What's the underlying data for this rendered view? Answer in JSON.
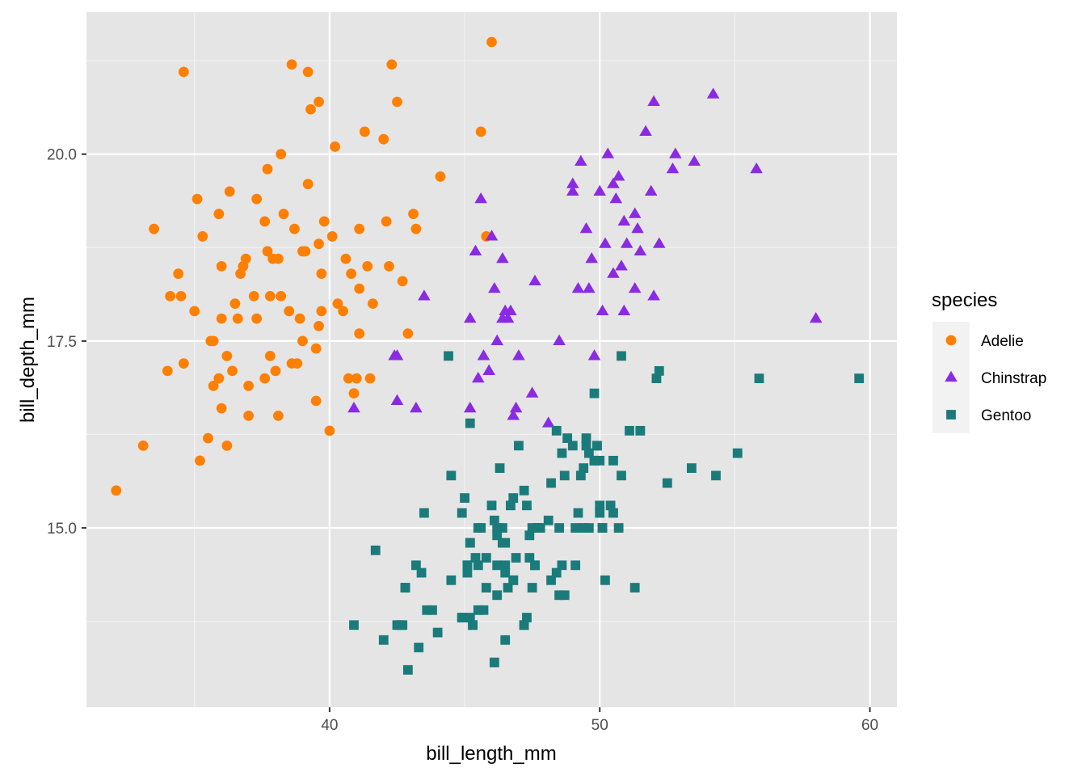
{
  "chart_data": {
    "type": "scatter",
    "xlabel": "bill_length_mm",
    "ylabel": "bill_depth_mm",
    "xlim": [
      31.0,
      61.0
    ],
    "ylim": [
      12.6,
      21.9
    ],
    "x_ticks": [
      40,
      50,
      60
    ],
    "x_tick_labels": [
      "40",
      "50",
      "60"
    ],
    "y_ticks": [
      15.0,
      17.5,
      20.0
    ],
    "y_tick_labels": [
      "15.0",
      "17.5",
      "20.0"
    ],
    "grid": true,
    "background": "#e5e5e5",
    "legend": {
      "title": "species",
      "position": "right"
    },
    "series": [
      {
        "name": "Adelie",
        "marker": "circle",
        "color": "#ff7f00",
        "points": [
          [
            32.1,
            15.5
          ],
          [
            33.1,
            16.1
          ],
          [
            33.5,
            19.0
          ],
          [
            34.0,
            17.1
          ],
          [
            34.1,
            18.1
          ],
          [
            34.4,
            18.4
          ],
          [
            34.5,
            18.1
          ],
          [
            34.6,
            17.2
          ],
          [
            34.6,
            21.1
          ],
          [
            35.0,
            17.9
          ],
          [
            35.1,
            19.4
          ],
          [
            35.2,
            15.9
          ],
          [
            35.3,
            18.9
          ],
          [
            35.5,
            16.2
          ],
          [
            35.6,
            17.5
          ],
          [
            35.7,
            17.5
          ],
          [
            35.7,
            16.9
          ],
          [
            35.9,
            19.2
          ],
          [
            35.9,
            17.0
          ],
          [
            36.0,
            16.6
          ],
          [
            36.0,
            17.8
          ],
          [
            36.2,
            16.1
          ],
          [
            36.2,
            17.3
          ],
          [
            36.3,
            19.5
          ],
          [
            36.4,
            17.1
          ],
          [
            36.6,
            17.8
          ],
          [
            36.5,
            18.0
          ],
          [
            36.7,
            18.4
          ],
          [
            36.8,
            18.5
          ],
          [
            36.9,
            18.6
          ],
          [
            37.0,
            16.5
          ],
          [
            37.0,
            16.9
          ],
          [
            37.2,
            18.1
          ],
          [
            37.3,
            19.4
          ],
          [
            37.3,
            17.8
          ],
          [
            37.6,
            19.1
          ],
          [
            37.6,
            17.0
          ],
          [
            37.7,
            18.7
          ],
          [
            37.8,
            17.3
          ],
          [
            37.8,
            18.1
          ],
          [
            37.9,
            18.6
          ],
          [
            38.1,
            18.6
          ],
          [
            38.1,
            16.5
          ],
          [
            38.2,
            18.1
          ],
          [
            38.2,
            20.0
          ],
          [
            38.3,
            19.2
          ],
          [
            38.5,
            17.9
          ],
          [
            38.6,
            21.2
          ],
          [
            38.6,
            17.2
          ],
          [
            38.7,
            19.0
          ],
          [
            38.8,
            17.2
          ],
          [
            38.9,
            17.8
          ],
          [
            39.0,
            17.5
          ],
          [
            39.1,
            18.7
          ],
          [
            39.2,
            19.6
          ],
          [
            39.2,
            21.1
          ],
          [
            39.3,
            20.6
          ],
          [
            39.5,
            17.4
          ],
          [
            39.5,
            16.7
          ],
          [
            39.6,
            17.7
          ],
          [
            39.6,
            20.7
          ],
          [
            39.7,
            18.4
          ],
          [
            39.8,
            19.1
          ],
          [
            39.6,
            18.8
          ],
          [
            39.7,
            17.9
          ],
          [
            40.0,
            16.3
          ],
          [
            40.1,
            18.9
          ],
          [
            40.2,
            20.1
          ],
          [
            40.3,
            18.0
          ],
          [
            40.5,
            17.9
          ],
          [
            40.6,
            18.6
          ],
          [
            40.7,
            17.0
          ],
          [
            40.8,
            18.4
          ],
          [
            40.9,
            16.8
          ],
          [
            41.0,
            17.0
          ],
          [
            41.1,
            18.2
          ],
          [
            41.1,
            19.0
          ],
          [
            41.3,
            20.3
          ],
          [
            41.4,
            18.5
          ],
          [
            41.5,
            17.0
          ],
          [
            41.6,
            18.0
          ],
          [
            42.0,
            20.2
          ],
          [
            42.1,
            19.1
          ],
          [
            42.2,
            18.5
          ],
          [
            42.3,
            21.2
          ],
          [
            42.5,
            20.7
          ],
          [
            42.7,
            18.3
          ],
          [
            42.9,
            17.6
          ],
          [
            43.1,
            19.2
          ],
          [
            43.2,
            19.0
          ],
          [
            44.1,
            19.7
          ],
          [
            45.6,
            20.3
          ],
          [
            45.8,
            18.9
          ],
          [
            46.0,
            21.5
          ],
          [
            41.1,
            17.6
          ],
          [
            38.0,
            17.1
          ],
          [
            37.7,
            19.8
          ],
          [
            36.0,
            18.5
          ],
          [
            39.0,
            18.7
          ]
        ]
      },
      {
        "name": "Chinstrap",
        "marker": "triangle",
        "color": "#8a2be2",
        "points": [
          [
            40.9,
            16.6
          ],
          [
            42.4,
            17.3
          ],
          [
            42.5,
            16.7
          ],
          [
            43.2,
            16.6
          ],
          [
            43.5,
            18.1
          ],
          [
            45.2,
            16.6
          ],
          [
            45.4,
            18.7
          ],
          [
            45.5,
            17.0
          ],
          [
            45.6,
            19.4
          ],
          [
            45.7,
            17.3
          ],
          [
            45.9,
            17.1
          ],
          [
            46.0,
            18.9
          ],
          [
            46.1,
            18.2
          ],
          [
            46.4,
            17.8
          ],
          [
            46.2,
            17.5
          ],
          [
            46.5,
            17.9
          ],
          [
            46.6,
            17.8
          ],
          [
            46.7,
            17.9
          ],
          [
            46.8,
            16.5
          ],
          [
            46.9,
            16.6
          ],
          [
            47.0,
            17.3
          ],
          [
            47.5,
            16.8
          ],
          [
            47.6,
            18.3
          ],
          [
            48.1,
            16.4
          ],
          [
            48.5,
            17.5
          ],
          [
            49.0,
            19.5
          ],
          [
            49.2,
            18.2
          ],
          [
            49.3,
            19.9
          ],
          [
            49.7,
            18.6
          ],
          [
            49.8,
            17.3
          ],
          [
            49.6,
            18.2
          ],
          [
            49.5,
            19.0
          ],
          [
            50.0,
            19.5
          ],
          [
            50.1,
            17.9
          ],
          [
            50.2,
            18.8
          ],
          [
            50.3,
            20.0
          ],
          [
            50.5,
            18.4
          ],
          [
            50.6,
            19.4
          ],
          [
            50.7,
            19.7
          ],
          [
            50.8,
            18.5
          ],
          [
            51.0,
            18.8
          ],
          [
            51.3,
            18.2
          ],
          [
            51.3,
            19.2
          ],
          [
            51.4,
            19.0
          ],
          [
            51.5,
            18.7
          ],
          [
            51.7,
            20.3
          ],
          [
            52.0,
            18.1
          ],
          [
            52.0,
            20.7
          ],
          [
            52.2,
            18.8
          ],
          [
            52.7,
            19.8
          ],
          [
            52.8,
            20.0
          ],
          [
            53.5,
            19.9
          ],
          [
            54.2,
            20.8
          ],
          [
            55.8,
            19.8
          ],
          [
            58.0,
            17.8
          ],
          [
            49.0,
            19.6
          ],
          [
            50.9,
            17.9
          ],
          [
            50.9,
            19.1
          ],
          [
            46.4,
            18.6
          ],
          [
            45.2,
            17.8
          ],
          [
            51.9,
            19.5
          ],
          [
            50.5,
            19.6
          ],
          [
            42.5,
            17.3
          ]
        ]
      },
      {
        "name": "Gentoo",
        "marker": "square",
        "color": "#1b7b7b",
        "points": [
          [
            40.9,
            13.7
          ],
          [
            41.7,
            14.7
          ],
          [
            42.0,
            13.5
          ],
          [
            42.5,
            13.7
          ],
          [
            42.6,
            13.7
          ],
          [
            42.7,
            13.7
          ],
          [
            42.8,
            14.2
          ],
          [
            42.9,
            13.1
          ],
          [
            43.2,
            14.5
          ],
          [
            43.3,
            13.4
          ],
          [
            43.4,
            14.4
          ],
          [
            43.5,
            15.2
          ],
          [
            43.6,
            13.9
          ],
          [
            43.8,
            13.9
          ],
          [
            44.0,
            13.6
          ],
          [
            44.4,
            17.3
          ],
          [
            44.5,
            14.3
          ],
          [
            44.5,
            15.7
          ],
          [
            44.9,
            13.8
          ],
          [
            45.0,
            15.4
          ],
          [
            45.1,
            14.5
          ],
          [
            45.2,
            14.8
          ],
          [
            45.2,
            16.4
          ],
          [
            45.2,
            13.8
          ],
          [
            45.3,
            13.7
          ],
          [
            45.4,
            14.6
          ],
          [
            45.5,
            13.9
          ],
          [
            45.5,
            15.0
          ],
          [
            45.7,
            13.9
          ],
          [
            45.8,
            14.6
          ],
          [
            45.8,
            14.2
          ],
          [
            46.1,
            13.2
          ],
          [
            46.2,
            14.5
          ],
          [
            46.2,
            14.9
          ],
          [
            46.3,
            15.8
          ],
          [
            46.4,
            15.0
          ],
          [
            46.5,
            13.5
          ],
          [
            46.5,
            14.5
          ],
          [
            46.5,
            14.4
          ],
          [
            46.6,
            14.2
          ],
          [
            46.8,
            14.3
          ],
          [
            46.8,
            15.4
          ],
          [
            46.9,
            14.6
          ],
          [
            47.2,
            13.7
          ],
          [
            47.2,
            15.5
          ],
          [
            47.3,
            13.8
          ],
          [
            47.4,
            14.6
          ],
          [
            47.5,
            14.2
          ],
          [
            47.5,
            15.0
          ],
          [
            47.6,
            14.5
          ],
          [
            47.7,
            15.0
          ],
          [
            47.8,
            15.0
          ],
          [
            48.1,
            15.1
          ],
          [
            48.2,
            14.3
          ],
          [
            48.4,
            14.4
          ],
          [
            48.5,
            15.0
          ],
          [
            48.6,
            16.0
          ],
          [
            48.7,
            14.1
          ],
          [
            48.7,
            15.7
          ],
          [
            48.8,
            16.2
          ],
          [
            49.0,
            16.1
          ],
          [
            49.1,
            15.0
          ],
          [
            49.1,
            14.5
          ],
          [
            49.2,
            15.2
          ],
          [
            49.3,
            15.7
          ],
          [
            49.4,
            15.8
          ],
          [
            49.5,
            16.2
          ],
          [
            49.5,
            16.1
          ],
          [
            49.6,
            15.0
          ],
          [
            49.6,
            16.0
          ],
          [
            49.8,
            16.8
          ],
          [
            49.8,
            15.9
          ],
          [
            49.9,
            16.1
          ],
          [
            50.0,
            15.2
          ],
          [
            50.0,
            15.9
          ],
          [
            50.1,
            15.0
          ],
          [
            50.2,
            14.3
          ],
          [
            50.4,
            15.3
          ],
          [
            50.5,
            15.9
          ],
          [
            50.7,
            15.0
          ],
          [
            50.8,
            15.7
          ],
          [
            50.8,
            17.3
          ],
          [
            51.1,
            16.3
          ],
          [
            51.3,
            14.2
          ],
          [
            51.5,
            16.3
          ],
          [
            52.1,
            17.0
          ],
          [
            52.2,
            17.1
          ],
          [
            52.5,
            15.6
          ],
          [
            53.4,
            15.8
          ],
          [
            54.3,
            15.7
          ],
          [
            55.1,
            16.0
          ],
          [
            55.9,
            17.0
          ],
          [
            59.6,
            17.0
          ],
          [
            49.4,
            15.0
          ],
          [
            50.0,
            15.3
          ],
          [
            47.0,
            16.1
          ],
          [
            45.6,
            15.0
          ],
          [
            44.9,
            15.2
          ],
          [
            46.2,
            15.0
          ],
          [
            48.4,
            16.3
          ],
          [
            47.7,
            15.0
          ],
          [
            46.1,
            15.1
          ],
          [
            45.1,
            14.4
          ],
          [
            46.7,
            15.3
          ],
          [
            48.2,
            15.6
          ],
          [
            46.5,
            14.8
          ],
          [
            46.4,
            14.8
          ],
          [
            47.4,
            14.9
          ],
          [
            48.6,
            14.5
          ],
          [
            45.2,
            14.8
          ],
          [
            49.8,
            15.9
          ],
          [
            47.3,
            15.3
          ],
          [
            50.5,
            15.2
          ],
          [
            42.8,
            14.2
          ],
          [
            45.3,
            13.7
          ],
          [
            46.0,
            15.3
          ],
          [
            47.2,
            13.7
          ],
          [
            49.9,
            16.1
          ],
          [
            50.1,
            15.0
          ],
          [
            46.8,
            14.3
          ],
          [
            45.5,
            14.5
          ],
          [
            46.2,
            14.1
          ],
          [
            47.6,
            14.5
          ],
          [
            48.5,
            14.1
          ],
          [
            45.1,
            14.5
          ],
          [
            44.9,
            13.8
          ]
        ]
      }
    ]
  }
}
